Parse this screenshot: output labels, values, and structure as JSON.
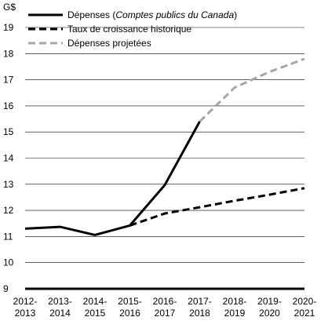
{
  "chart_data": {
    "type": "line",
    "title": "",
    "ylabel": "G$",
    "xlabel": "",
    "ylim": [
      9,
      19
    ],
    "yticks": [
      9,
      10,
      11,
      12,
      13,
      14,
      15,
      16,
      17,
      18,
      19
    ],
    "categories": [
      [
        "2012-",
        "2013"
      ],
      [
        "2013-",
        "2014"
      ],
      [
        "2014-",
        "2015"
      ],
      [
        "2015-",
        "2016"
      ],
      [
        "2016-",
        "2017"
      ],
      [
        "2017-",
        "2018"
      ],
      [
        "2018-",
        "2019"
      ],
      [
        "2019-",
        "2020"
      ],
      [
        "2020-",
        "2021"
      ]
    ],
    "grid": "horizontal",
    "legend_position": "top",
    "series": [
      {
        "name": "Dépenses (Comptes publics du Canada)",
        "name_plain": "Dépenses (",
        "name_italic": "Comptes publics du Canada",
        "name_end": ")",
        "style": "solid",
        "color": "#000000",
        "values": [
          11.3,
          11.37,
          11.06,
          11.42,
          12.97,
          15.4,
          null,
          null,
          null
        ]
      },
      {
        "name": "Taux de croissance historique",
        "style": "dashed",
        "color": "#000000",
        "values": [
          null,
          null,
          null,
          11.42,
          11.88,
          12.12,
          12.37,
          12.6,
          12.85
        ]
      },
      {
        "name": "Dépenses projetées",
        "style": "dashed",
        "color": "#a6a6a6",
        "values": [
          null,
          null,
          null,
          null,
          null,
          15.4,
          16.7,
          17.3,
          17.8
        ]
      }
    ]
  }
}
